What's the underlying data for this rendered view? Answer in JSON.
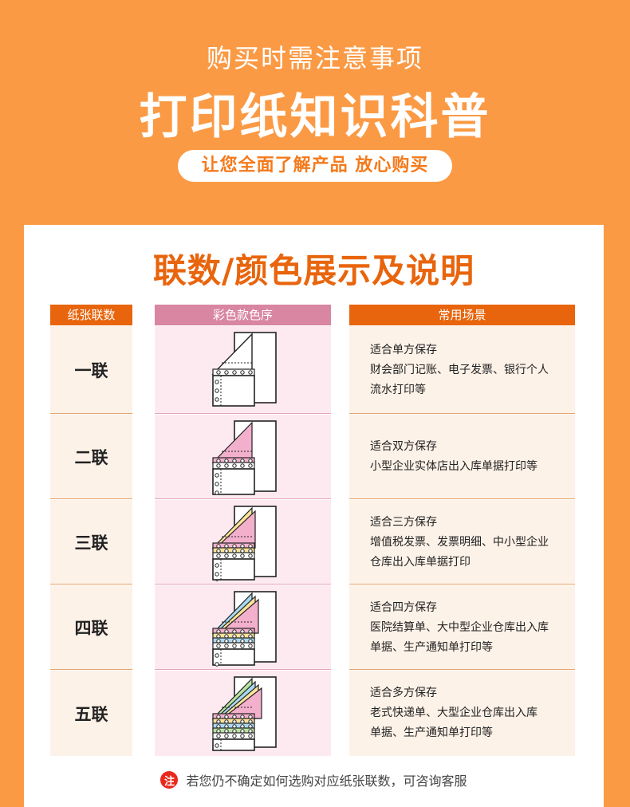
{
  "hero": {
    "subtitle": "购买时需注意事项",
    "title": "打印纸知识科普",
    "pill": "让您全面了解产品 放心购买"
  },
  "card": {
    "title": "联数/颜色展示及说明",
    "headers": [
      "纸张联数",
      "彩色款色序",
      "常用场景"
    ],
    "rows": [
      {
        "label": "一联",
        "colors": [],
        "lines": [
          "适合单方保存",
          "财会部门记账、电子发票、银行个人",
          "流水打印等"
        ]
      },
      {
        "label": "二联",
        "colors": [
          "#f3b0cd"
        ],
        "lines": [
          "适合双方保存",
          "小型企业实体店出入库单据打印等"
        ]
      },
      {
        "label": "三联",
        "colors": [
          "#fbe39a",
          "#f3b0cd"
        ],
        "lines": [
          "适合三方保存",
          "增值税发票、发票明细、中小型企业",
          "仓库出入库单据打印"
        ]
      },
      {
        "label": "四联",
        "colors": [
          "#a9d9f1",
          "#fbe39a",
          "#f3b0cd"
        ],
        "lines": [
          "适合四方保存",
          "医院结算单、大中型企业仓库出入库",
          "单据、生产通知单打印等"
        ]
      },
      {
        "label": "五联",
        "colors": [
          "#b9e3a0",
          "#a9d9f1",
          "#fbe39a",
          "#f3b0cd"
        ],
        "lines": [
          "适合多方保存",
          "老式快递单、大型企业仓库出入库",
          "单据、生产通知单打印等"
        ]
      }
    ],
    "note": {
      "badge": "注",
      "text": "若您仍不确定如何选购对应纸张联数，可咨询客服"
    }
  }
}
